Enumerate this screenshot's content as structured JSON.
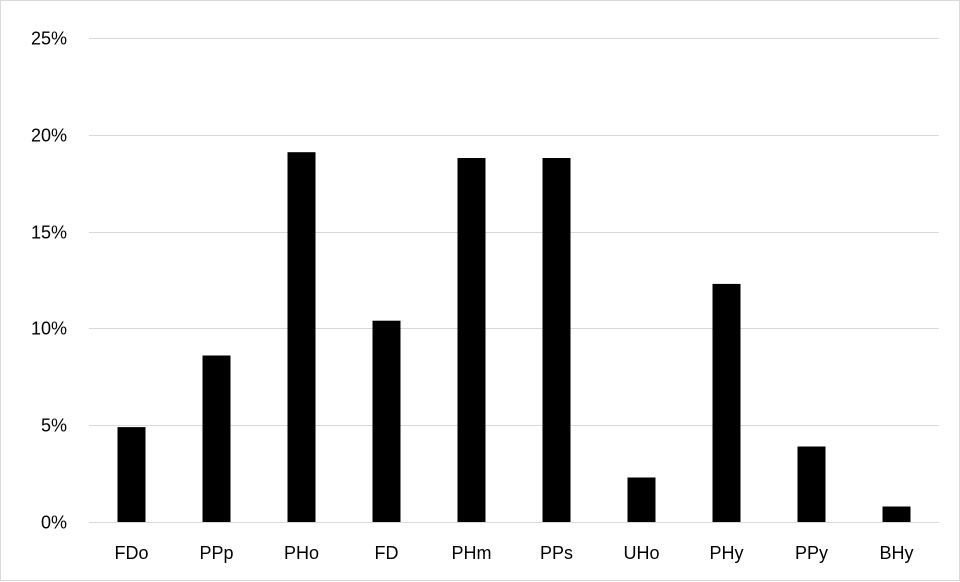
{
  "chart_data": {
    "type": "bar",
    "title": "",
    "xlabel": "",
    "ylabel": "",
    "categories": [
      "FDo",
      "PPp",
      "PHo",
      "FD",
      "PHm",
      "PPs",
      "UHo",
      "PHy",
      "PPy",
      "BHy"
    ],
    "values": [
      4.9,
      8.6,
      19.1,
      10.4,
      18.8,
      18.8,
      2.3,
      12.3,
      3.9,
      0.8
    ],
    "value_unit": "%",
    "ylim": [
      0,
      25
    ],
    "yticks": [
      0,
      5,
      10,
      15,
      20,
      25
    ],
    "ytick_labels": [
      "0%",
      "5%",
      "10%",
      "15%",
      "20%",
      "25%"
    ],
    "grid": true,
    "legend": "none",
    "bar_color": "#000000",
    "grid_color": "#d9d9d9"
  }
}
